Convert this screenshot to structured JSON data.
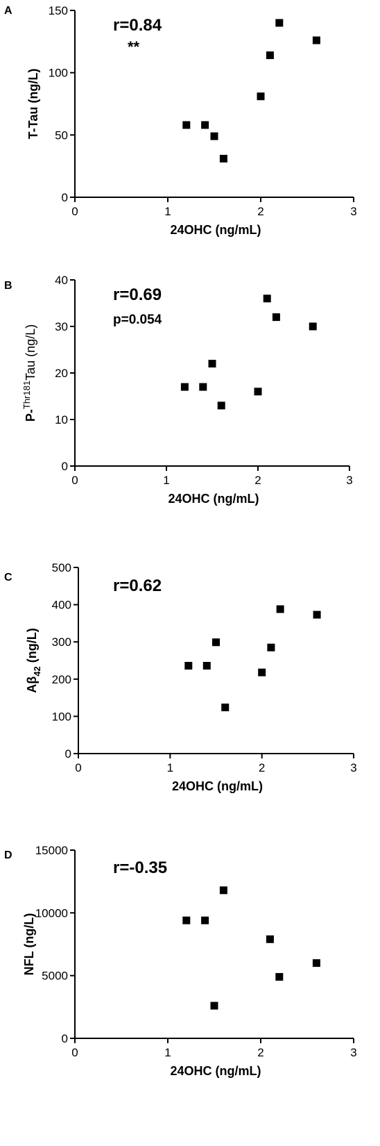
{
  "chart_data": [
    {
      "type": "scatter",
      "panel": "A",
      "xlabel": "24OHC (ng/mL)",
      "ylabel": "T-Tau (ng/L)",
      "xlim": [
        0,
        3
      ],
      "ylim": [
        0,
        150
      ],
      "xticks": [
        "0",
        "1",
        "2",
        "3"
      ],
      "yticks": [
        "0",
        "50",
        "100",
        "150"
      ],
      "annotations": [
        "r=0.84",
        "**"
      ],
      "points": [
        {
          "x": 1.2,
          "y": 58
        },
        {
          "x": 1.4,
          "y": 58
        },
        {
          "x": 1.5,
          "y": 49
        },
        {
          "x": 1.6,
          "y": 31
        },
        {
          "x": 2.0,
          "y": 81
        },
        {
          "x": 2.1,
          "y": 114
        },
        {
          "x": 2.2,
          "y": 140
        },
        {
          "x": 2.6,
          "y": 126
        }
      ]
    },
    {
      "type": "scatter",
      "panel": "B",
      "xlabel": "24OHC (ng/mL)",
      "ylabel": "P-Thr181Tau (ng/L)",
      "ylabel_parts": {
        "pre": "P-",
        "sup": "Thr181",
        "post": "Tau (ng/L)"
      },
      "xlim": [
        0,
        3
      ],
      "ylim": [
        0,
        40
      ],
      "xticks": [
        "0",
        "1",
        "2",
        "3"
      ],
      "yticks": [
        "0",
        "10",
        "20",
        "30",
        "40"
      ],
      "annotations": [
        "r=0.69",
        "p=0.054"
      ],
      "points": [
        {
          "x": 1.2,
          "y": 17
        },
        {
          "x": 1.4,
          "y": 17
        },
        {
          "x": 1.5,
          "y": 22
        },
        {
          "x": 1.6,
          "y": 13
        },
        {
          "x": 2.0,
          "y": 16
        },
        {
          "x": 2.1,
          "y": 36
        },
        {
          "x": 2.2,
          "y": 32
        },
        {
          "x": 2.6,
          "y": 30
        }
      ]
    },
    {
      "type": "scatter",
      "panel": "C",
      "xlabel": "24OHC (ng/mL)",
      "ylabel": "Aβ42 (ng/L)",
      "ylabel_parts": {
        "pre": "Aβ",
        "sub": "42",
        "post": " (ng/L)"
      },
      "xlim": [
        0,
        3
      ],
      "ylim": [
        0,
        500
      ],
      "xticks": [
        "0",
        "1",
        "2",
        "3"
      ],
      "yticks": [
        "0",
        "100",
        "200",
        "300",
        "400",
        "500"
      ],
      "annotations": [
        "r=0.62"
      ],
      "points": [
        {
          "x": 1.2,
          "y": 236
        },
        {
          "x": 1.4,
          "y": 236
        },
        {
          "x": 1.5,
          "y": 299
        },
        {
          "x": 1.6,
          "y": 124
        },
        {
          "x": 2.0,
          "y": 218
        },
        {
          "x": 2.1,
          "y": 285
        },
        {
          "x": 2.2,
          "y": 388
        },
        {
          "x": 2.6,
          "y": 373
        }
      ]
    },
    {
      "type": "scatter",
      "panel": "D",
      "xlabel": "24OHC (ng/mL)",
      "ylabel": "NFL (ng/L)",
      "xlim": [
        0,
        3
      ],
      "ylim": [
        0,
        15000
      ],
      "xticks": [
        "0",
        "1",
        "2",
        "3"
      ],
      "yticks": [
        "0",
        "5000",
        "10000",
        "15000"
      ],
      "annotations": [
        "r=-0.35"
      ],
      "points": [
        {
          "x": 1.2,
          "y": 9400
        },
        {
          "x": 1.4,
          "y": 9400
        },
        {
          "x": 1.5,
          "y": 2600
        },
        {
          "x": 1.6,
          "y": 11800
        },
        {
          "x": 2.1,
          "y": 7900
        },
        {
          "x": 2.2,
          "y": 4900
        },
        {
          "x": 2.6,
          "y": 6000
        }
      ]
    }
  ]
}
